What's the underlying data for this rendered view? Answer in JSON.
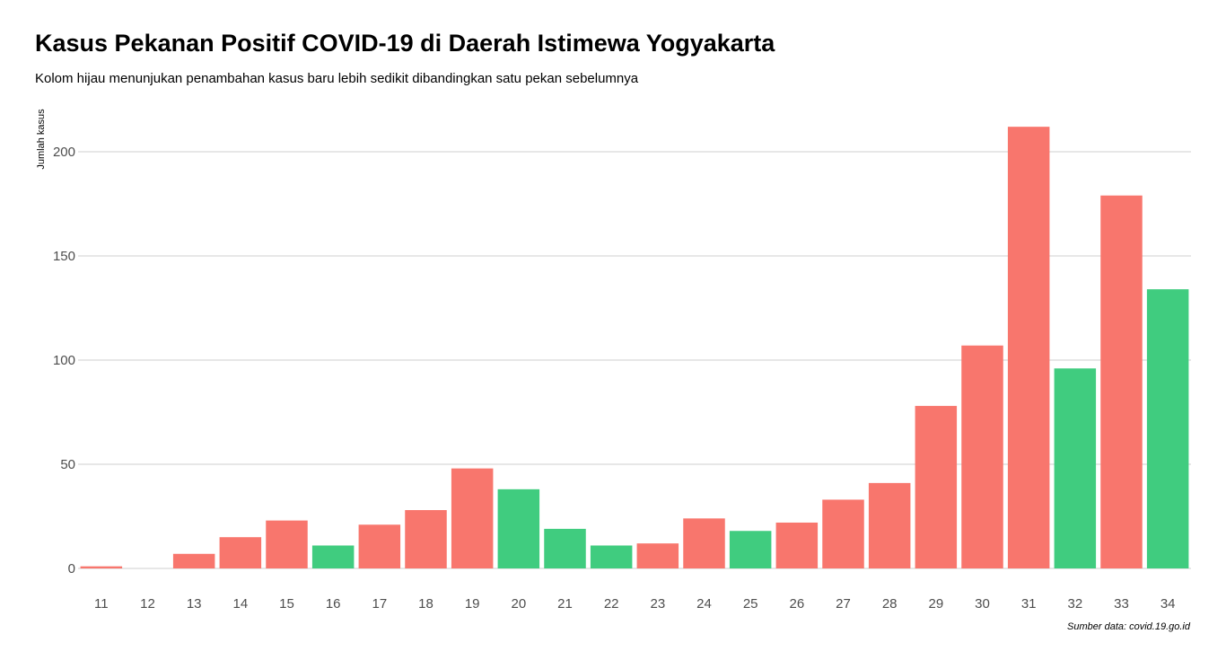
{
  "chart_data": {
    "type": "bar",
    "title": "Kasus Pekanan Positif COVID-19 di Daerah Istimewa Yogyakarta",
    "subtitle": "Kolom hijau menunjukan penambahan kasus baru lebih sedikit dibandingkan satu pekan sebelumnya",
    "caption": "Sumber data: covid.19.go.id",
    "xlabel": "",
    "ylabel": "Jumlah kasus",
    "ylim": [
      0,
      212
    ],
    "yticks": [
      0,
      50,
      100,
      150,
      200
    ],
    "grid": "horizontal major",
    "legend": "none",
    "categories": [
      "11",
      "12",
      "13",
      "14",
      "15",
      "16",
      "17",
      "18",
      "19",
      "20",
      "21",
      "22",
      "23",
      "24",
      "25",
      "26",
      "27",
      "28",
      "29",
      "30",
      "31",
      "32",
      "33",
      "34"
    ],
    "values": [
      1,
      0,
      7,
      15,
      23,
      11,
      21,
      28,
      48,
      38,
      19,
      11,
      12,
      24,
      18,
      22,
      33,
      41,
      78,
      107,
      212,
      96,
      179,
      134
    ],
    "fewer_than_previous_week": [
      false,
      true,
      false,
      false,
      false,
      true,
      false,
      false,
      false,
      true,
      true,
      true,
      false,
      false,
      true,
      false,
      false,
      false,
      false,
      false,
      false,
      true,
      false,
      true
    ],
    "colors": {
      "increase": "#F8766D",
      "decrease": "#40CC7F",
      "gridline": "#cfcfcf",
      "tick_label": "#4d4d4d"
    }
  }
}
